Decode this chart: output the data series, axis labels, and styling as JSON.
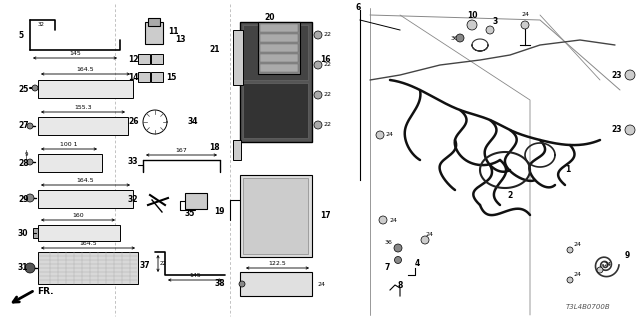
{
  "bg_color": "#ffffff",
  "diagram_code": "T3L4B0700B",
  "fig_w": 6.4,
  "fig_h": 3.2,
  "dpi": 100
}
